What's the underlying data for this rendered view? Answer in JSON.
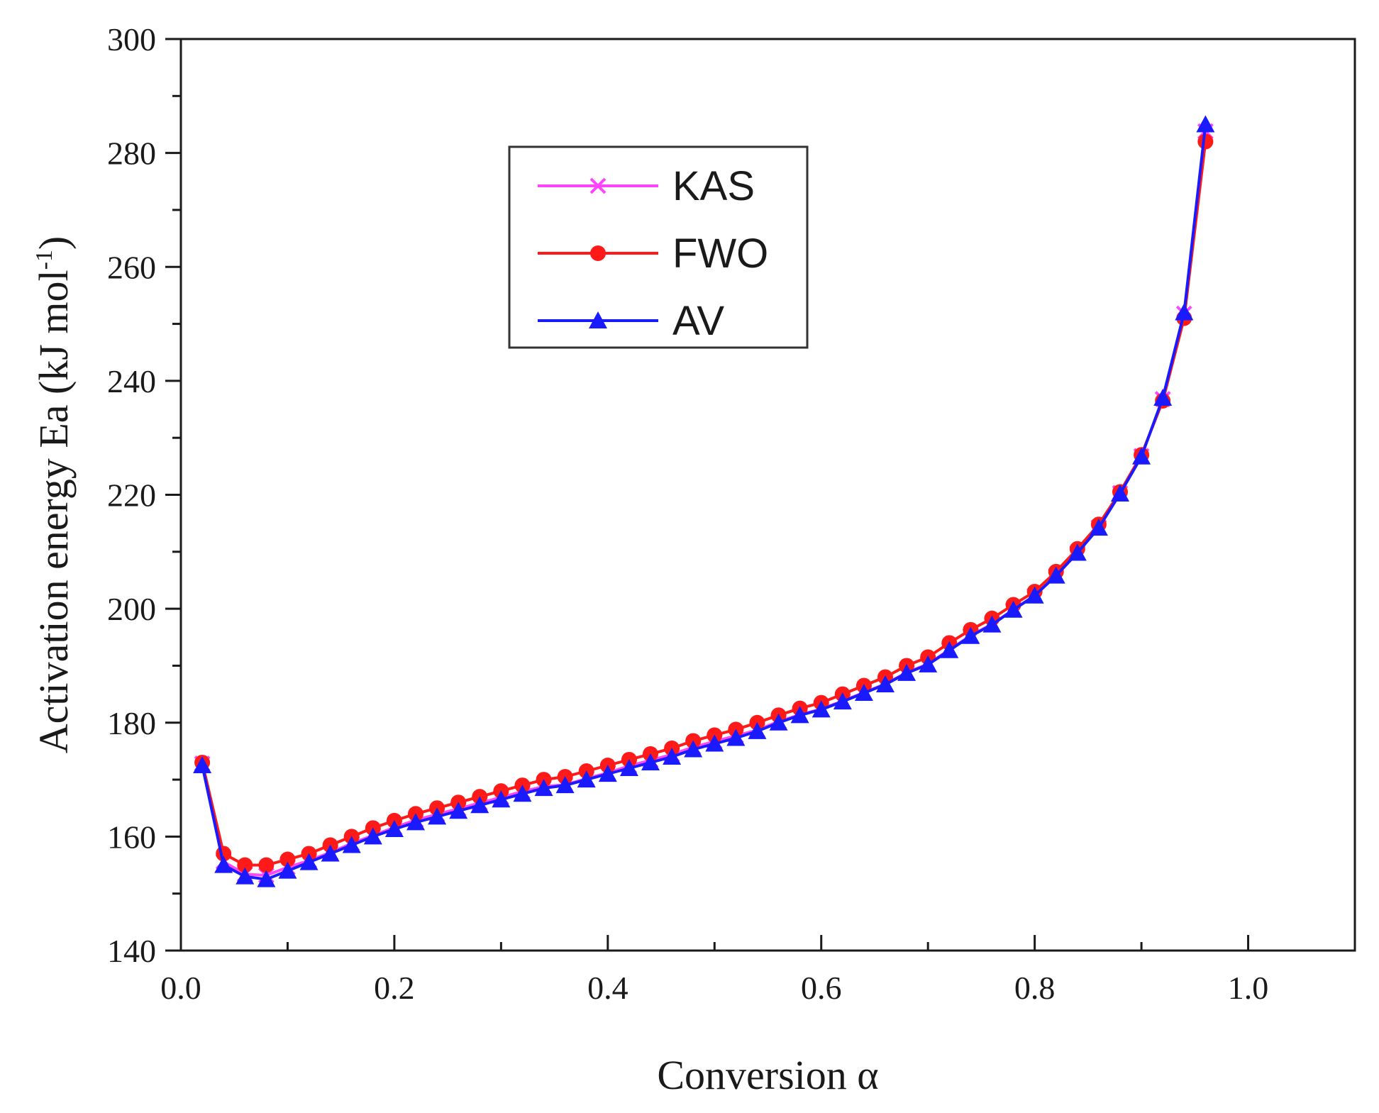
{
  "chart_data": {
    "type": "line",
    "title": "",
    "xlabel": "Conversion α",
    "ylabel_main": "Activation  energy Ea (kJ mol",
    "ylabel_sup": "-1",
    "ylabel_close": ")",
    "xlim": [
      0.0,
      1.1
    ],
    "ylim": [
      140,
      300
    ],
    "xticks": [
      0.0,
      0.2,
      0.4,
      0.6,
      0.8,
      1.0
    ],
    "xtick_labels": [
      "0.0",
      "0.2",
      "0.4",
      "0.6",
      "0.8",
      "1.0"
    ],
    "yticks": [
      140,
      160,
      180,
      200,
      220,
      240,
      260,
      280,
      300
    ],
    "ytick_labels": [
      "140",
      "160",
      "180",
      "200",
      "220",
      "240",
      "260",
      "280",
      "300"
    ],
    "grid": false,
    "legend_position": "top-center",
    "x": [
      0.02,
      0.04,
      0.06,
      0.08,
      0.1,
      0.12,
      0.14,
      0.16,
      0.18,
      0.2,
      0.22,
      0.24,
      0.26,
      0.28,
      0.3,
      0.32,
      0.34,
      0.36,
      0.38,
      0.4,
      0.42,
      0.44,
      0.46,
      0.48,
      0.5,
      0.52,
      0.54,
      0.56,
      0.58,
      0.6,
      0.62,
      0.64,
      0.66,
      0.68,
      0.7,
      0.72,
      0.74,
      0.76,
      0.78,
      0.8,
      0.82,
      0.84,
      0.86,
      0.88,
      0.9,
      0.92,
      0.94,
      0.96
    ],
    "series": [
      {
        "name": "KAS",
        "color": "#ff44ff",
        "marker": "x",
        "values": [
          172.8,
          155.6,
          153.4,
          153.2,
          154.6,
          155.8,
          157.2,
          158.8,
          160.2,
          161.6,
          162.9,
          163.9,
          164.9,
          165.9,
          166.9,
          167.9,
          168.8,
          169.1,
          170.2,
          171.2,
          172.4,
          173.4,
          174.4,
          175.7,
          176.7,
          177.7,
          178.7,
          180.2,
          181.4,
          182.4,
          183.8,
          185.3,
          186.8,
          188.8,
          190.3,
          192.8,
          195.3,
          197.3,
          199.8,
          202.3,
          205.8,
          209.8,
          214.3,
          220.3,
          226.8,
          236.8,
          251.8,
          283.8
        ]
      },
      {
        "name": "FWO",
        "color": "#ff1a1a",
        "marker": "o",
        "values": [
          173.0,
          157.0,
          155.0,
          155.0,
          156.0,
          157.0,
          158.5,
          160.0,
          161.5,
          162.8,
          164.0,
          165.0,
          166.0,
          167.0,
          168.0,
          169.0,
          170.0,
          170.5,
          171.5,
          172.5,
          173.5,
          174.5,
          175.5,
          176.8,
          177.8,
          178.8,
          180.0,
          181.3,
          182.5,
          183.5,
          185.0,
          186.5,
          188.0,
          190.0,
          191.5,
          194.0,
          196.3,
          198.3,
          200.7,
          203.0,
          206.5,
          210.5,
          214.8,
          220.5,
          227.0,
          236.5,
          251.0,
          282.0
        ]
      },
      {
        "name": "AV",
        "color": "#1a1aff",
        "marker": "^",
        "values": [
          172.5,
          155.0,
          153.0,
          152.5,
          154.0,
          155.5,
          157.0,
          158.5,
          160.0,
          161.3,
          162.5,
          163.5,
          164.5,
          165.5,
          166.5,
          167.5,
          168.5,
          169.0,
          170.0,
          171.0,
          172.0,
          173.0,
          174.0,
          175.3,
          176.3,
          177.3,
          178.5,
          180.0,
          181.3,
          182.3,
          183.7,
          185.2,
          186.7,
          188.7,
          190.2,
          192.7,
          195.2,
          197.2,
          199.8,
          202.3,
          205.8,
          209.8,
          214.2,
          220.2,
          226.7,
          237.0,
          252.0,
          285.0
        ]
      }
    ]
  }
}
